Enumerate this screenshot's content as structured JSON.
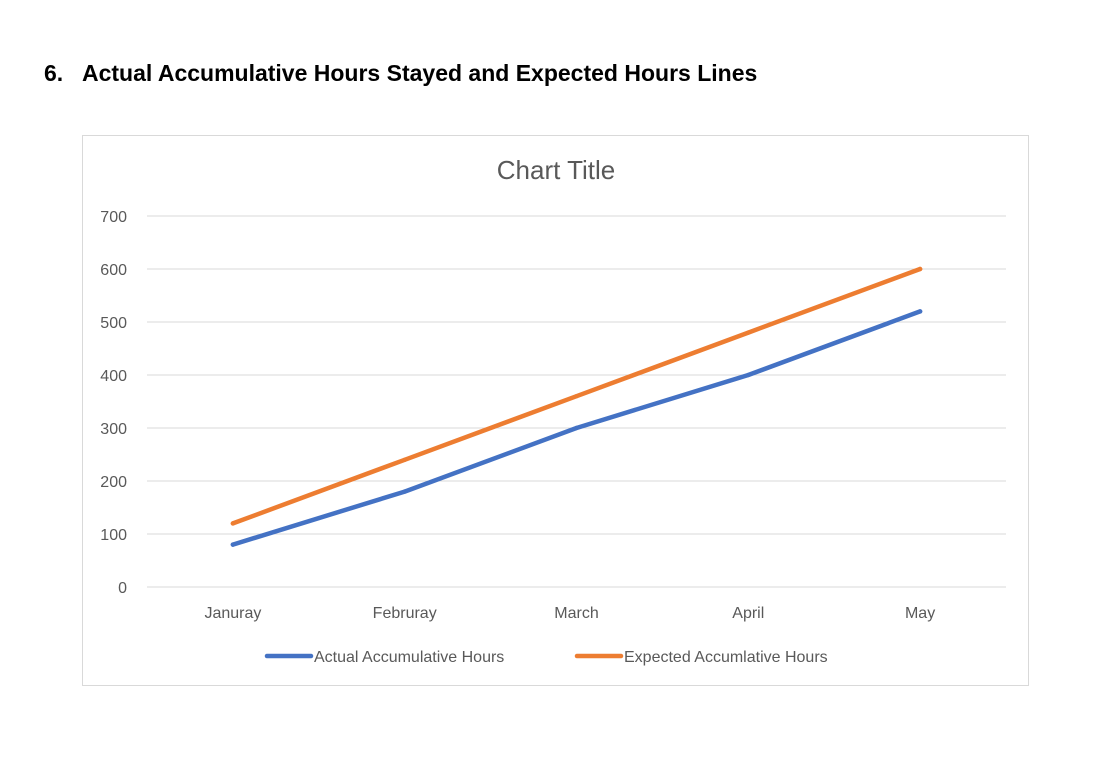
{
  "heading": {
    "number": "6.",
    "text": "Actual Accumulative Hours Stayed and Expected Hours Lines"
  },
  "chart_data": {
    "type": "line",
    "title": "Chart Title",
    "categories": [
      "Januray",
      "Februray",
      "March",
      "April",
      "May"
    ],
    "series": [
      {
        "name": "Actual Accumulative Hours",
        "values": [
          80,
          180,
          300,
          400,
          520
        ],
        "color": "#4472c4"
      },
      {
        "name": "Expected Accumlative Hours",
        "values": [
          120,
          240,
          360,
          480,
          600
        ],
        "color": "#ed7d31"
      }
    ],
    "ylim": [
      0,
      700
    ],
    "yticks": [
      0,
      100,
      200,
      300,
      400,
      500,
      600,
      700
    ],
    "grid": true,
    "legend": "bottom",
    "xlabel": "",
    "ylabel": ""
  }
}
